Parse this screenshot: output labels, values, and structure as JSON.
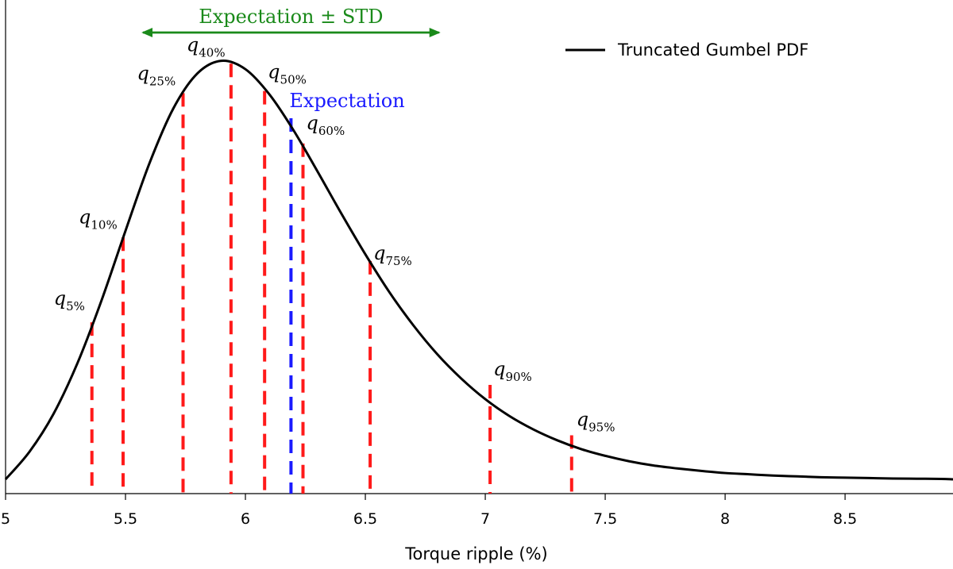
{
  "chart_data": {
    "type": "line",
    "xlabel": "Torque ripple (%)",
    "xlim": [
      5,
      8.95
    ],
    "ylim": [
      0,
      1.0
    ],
    "xticks": [
      5,
      5.5,
      6,
      6.5,
      7,
      7.5,
      8,
      8.5
    ],
    "xtick_labels": [
      "5",
      "5.5",
      "6",
      "6.5",
      "7",
      "7.5",
      "8",
      "8.5"
    ],
    "grid": false,
    "legend": {
      "position": "top-right",
      "entries": [
        "Truncated Gumbel PDF"
      ]
    },
    "series": [
      {
        "name": "Truncated Gumbel PDF",
        "color": "#000000",
        "x": [
          5.0,
          5.1,
          5.2,
          5.3,
          5.4,
          5.5,
          5.6,
          5.7,
          5.8,
          5.9,
          6.0,
          6.1,
          6.2,
          6.3,
          6.4,
          6.5,
          6.6,
          6.7,
          6.8,
          6.9,
          7.0,
          7.1,
          7.2,
          7.3,
          7.4,
          7.5,
          7.6,
          7.7,
          7.8,
          7.9,
          8.0,
          8.1,
          8.2,
          8.3,
          8.4,
          8.5,
          8.6,
          8.7,
          8.8,
          8.9,
          8.95
        ],
        "y": [
          0.0,
          0.066,
          0.156,
          0.277,
          0.426,
          0.592,
          0.753,
          0.884,
          0.967,
          0.997,
          0.977,
          0.917,
          0.832,
          0.734,
          0.633,
          0.536,
          0.446,
          0.367,
          0.298,
          0.24,
          0.191,
          0.151,
          0.119,
          0.093,
          0.072,
          0.056,
          0.043,
          0.033,
          0.026,
          0.02,
          0.015,
          0.012,
          0.009,
          0.007,
          0.005,
          0.004,
          0.003,
          0.002,
          0.0015,
          0.001,
          0.0
        ]
      }
    ],
    "quantiles": [
      {
        "label": "q",
        "sub": "5%",
        "x": 5.36,
        "y": 0.374
      },
      {
        "label": "q",
        "sub": "10%",
        "x": 5.49,
        "y": 0.576
      },
      {
        "label": "q",
        "sub": "25%",
        "x": 5.74,
        "y": 0.92
      },
      {
        "label": "q",
        "sub": "40%",
        "x": 5.94,
        "y": 0.99
      },
      {
        "label": "q",
        "sub": "50%",
        "x": 6.08,
        "y": 0.925
      },
      {
        "label": "q",
        "sub": "60%",
        "x": 6.24,
        "y": 0.8
      },
      {
        "label": "q",
        "sub": "75%",
        "x": 6.52,
        "y": 0.52
      },
      {
        "label": "q",
        "sub": "90%",
        "x": 7.02,
        "y": 0.225
      },
      {
        "label": "q",
        "sub": "95%",
        "x": 7.36,
        "y": 0.105
      }
    ],
    "expectation": {
      "label": "Expectation",
      "x": 6.19,
      "y": 0.86,
      "color": "#1a1aff"
    },
    "std_range": {
      "label": "Expectation ± STD",
      "x_from": 5.56,
      "x_to": 6.82,
      "color": "#1a8a1a"
    },
    "quantile_color": "#ff1a1a"
  }
}
